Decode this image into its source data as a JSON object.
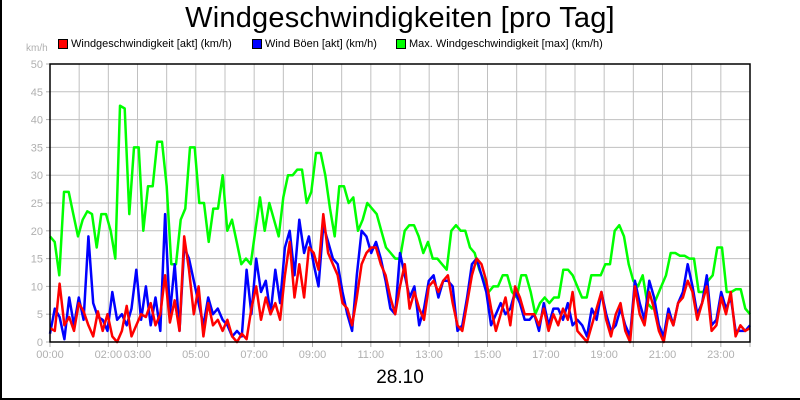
{
  "title": "Windgeschwindigkeiten [pro Tag]",
  "unit_label": "km/h",
  "date_label": "28.10",
  "legend": [
    {
      "label": "Windgeschwindigkeit [akt] (km/h)",
      "color": "#ff0000"
    },
    {
      "label": "Wind Böen [akt] (km/h)",
      "color": "#0000ff"
    },
    {
      "label": "Max. Windgeschwindigkeit [max] (km/h)",
      "color": "#00ff00"
    }
  ],
  "chart_data": {
    "type": "line",
    "title": "Windgeschwindigkeiten [pro Tag]",
    "xlabel": "28.10",
    "ylabel": "km/h",
    "ylim": [
      0,
      50
    ],
    "xlim_hours": [
      0,
      24
    ],
    "grid": true,
    "legend_position": "top",
    "y_ticks": [
      0,
      5,
      10,
      15,
      20,
      25,
      30,
      35,
      40,
      45,
      50
    ],
    "x_tick_labels": [
      "00:00",
      "02:00",
      "03:00",
      "05:00",
      "07:00",
      "09:00",
      "11:00",
      "13:00",
      "15:00",
      "17:00",
      "19:00",
      "21:00",
      "23:00"
    ],
    "x_tick_hours": [
      0,
      2,
      3,
      5,
      7,
      9,
      11,
      13,
      15,
      17,
      19,
      21,
      23
    ],
    "sample_interval_minutes": 10,
    "series": [
      {
        "name": "Windgeschwindigkeit [akt] (km/h)",
        "color": "#ff0000",
        "values": [
          2.5,
          2,
          10.5,
          3,
          4.5,
          2,
          7,
          5.5,
          3,
          1,
          5.5,
          2,
          5,
          1,
          0,
          2,
          6.5,
          1,
          3,
          5,
          4.5,
          7,
          3,
          5,
          12,
          3.5,
          7.5,
          2,
          19,
          13,
          5,
          10,
          1,
          7,
          3,
          4,
          2,
          4,
          1,
          0,
          1.5,
          0.5,
          6,
          10,
          4,
          8,
          5,
          7,
          4,
          12,
          18,
          8,
          14,
          8,
          17,
          16,
          13,
          23,
          16,
          14,
          12,
          7,
          6,
          3,
          8,
          14,
          16,
          17,
          17,
          14,
          12,
          8,
          5,
          10,
          14,
          6,
          9,
          6,
          4,
          10,
          11,
          9,
          11,
          12,
          7,
          3,
          2,
          7,
          12,
          15,
          14,
          11,
          6,
          2,
          5,
          8,
          3,
          10,
          8,
          5,
          5,
          5,
          3,
          6,
          2,
          5,
          3,
          6,
          4,
          9,
          2,
          1,
          0,
          3,
          6,
          9,
          4,
          1,
          5,
          7,
          2,
          0,
          10,
          5,
          3,
          9,
          6,
          2,
          0,
          5,
          3,
          7,
          8,
          11,
          9,
          4,
          7,
          10,
          2,
          3,
          8,
          5,
          9,
          1,
          3,
          2,
          2.5
        ]
      },
      {
        "name": "Wind Böen [akt] (km/h)",
        "color": "#0000ff",
        "values": [
          1.5,
          6,
          4.5,
          0.5,
          8,
          3,
          8,
          4,
          19,
          7,
          4.5,
          4,
          2,
          9,
          4,
          5,
          3,
          6,
          13,
          4,
          10,
          3,
          8,
          2,
          23,
          5,
          14,
          2,
          17,
          15,
          11,
          7,
          3,
          8,
          5,
          6,
          4,
          3,
          1,
          2,
          1,
          13,
          5,
          15,
          9,
          11,
          5,
          13,
          7,
          17,
          20,
          12,
          22,
          16,
          19,
          14,
          10,
          21,
          18,
          15,
          14,
          9,
          5,
          2,
          12,
          20,
          19,
          16,
          18,
          15,
          11,
          6,
          5,
          16,
          12,
          8,
          10,
          3,
          6,
          11,
          12,
          8,
          11,
          11,
          10,
          2,
          3,
          8,
          14,
          15,
          12,
          9,
          3,
          5,
          7,
          5,
          6,
          9,
          7,
          4,
          4,
          5,
          2,
          7,
          3,
          6,
          6,
          4,
          7,
          3,
          4,
          3,
          1,
          6,
          4,
          9,
          5,
          2,
          3,
          6,
          3,
          1,
          11,
          7,
          4,
          11,
          8,
          3,
          1,
          6,
          3,
          7,
          9,
          14,
          10,
          5,
          7,
          12,
          3,
          4,
          9,
          6,
          8,
          2,
          2,
          2,
          3
        ]
      },
      {
        "name": "Max. Windgeschwindigkeit [max] (km/h)",
        "color": "#00ff00",
        "values": [
          19,
          18,
          12,
          27,
          27,
          23,
          19,
          22,
          23.5,
          23,
          17,
          23,
          23,
          20,
          15,
          42.5,
          42,
          23,
          35,
          35,
          20,
          28,
          28,
          36,
          36,
          28,
          14,
          14,
          22,
          24,
          35,
          35,
          25,
          25,
          18,
          24,
          24,
          30,
          20,
          22,
          18,
          14,
          15,
          14,
          20,
          26,
          20,
          25,
          22,
          19,
          26,
          30,
          30,
          31,
          31,
          25,
          27,
          34,
          34,
          30,
          24,
          19,
          28,
          28,
          25,
          26,
          20,
          22,
          25,
          24,
          23,
          20,
          17,
          16,
          15,
          15,
          20,
          21,
          21,
          19,
          16,
          18,
          15,
          15,
          14,
          13,
          20,
          21,
          20,
          20,
          17,
          16,
          13,
          11,
          9,
          10,
          10,
          12,
          12,
          9,
          8,
          12,
          12,
          9,
          5,
          7,
          8,
          7,
          8,
          8,
          13,
          13,
          12,
          10,
          8,
          8,
          12,
          12,
          12,
          14,
          14,
          20,
          21,
          19,
          14,
          11,
          10,
          12,
          7,
          6,
          8,
          10,
          12,
          16,
          16,
          15.5,
          15.5,
          15,
          15,
          9,
          9,
          11,
          12,
          17,
          17,
          9,
          9,
          9.5,
          9.5,
          6,
          5
        ]
      }
    ]
  }
}
